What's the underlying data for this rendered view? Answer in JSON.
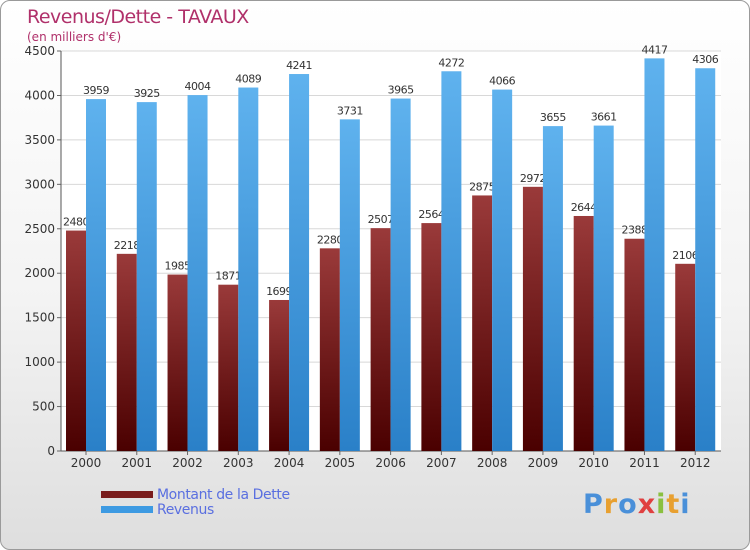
{
  "header": {
    "title": "Revenus/Dette - TAVAUX",
    "subtitle": "(en milliers d'€)"
  },
  "legend": {
    "items": [
      {
        "label": "Montant de la Dette",
        "color": "#7a1c1c"
      },
      {
        "label": "Revenus",
        "color": "#3d9ae2"
      }
    ]
  },
  "logo": {
    "text": "Proxiti",
    "letter_colors": [
      "#4a90d9",
      "#e8a030",
      "#4a90d9",
      "#e04040",
      "#8ac040",
      "#e8a030",
      "#4a90d9"
    ]
  },
  "chart_data": {
    "type": "bar",
    "title": "Revenus/Dette - TAVAUX",
    "subtitle": "(en milliers d'€)",
    "categories": [
      "2000",
      "2001",
      "2002",
      "2003",
      "2004",
      "2005",
      "2006",
      "2007",
      "2008",
      "2009",
      "2010",
      "2011",
      "2012"
    ],
    "series": [
      {
        "name": "Montant de la Dette",
        "color": "#7a1c1c",
        "values": [
          2480,
          2218,
          1985,
          1871,
          1699,
          2280,
          2507,
          2564,
          2875,
          2972,
          2644,
          2388,
          2106
        ]
      },
      {
        "name": "Revenus",
        "color": "#3d9ae2",
        "values": [
          3959,
          3925,
          4004,
          4089,
          4241,
          3731,
          3965,
          4272,
          4066,
          3655,
          3661,
          4417,
          4306
        ]
      }
    ],
    "ylim": [
      0,
      4500
    ],
    "yticks": [
      0,
      500,
      1000,
      1500,
      2000,
      2500,
      3000,
      3500,
      4000,
      4500
    ],
    "grid": true,
    "legend_position": "bottom-left"
  }
}
